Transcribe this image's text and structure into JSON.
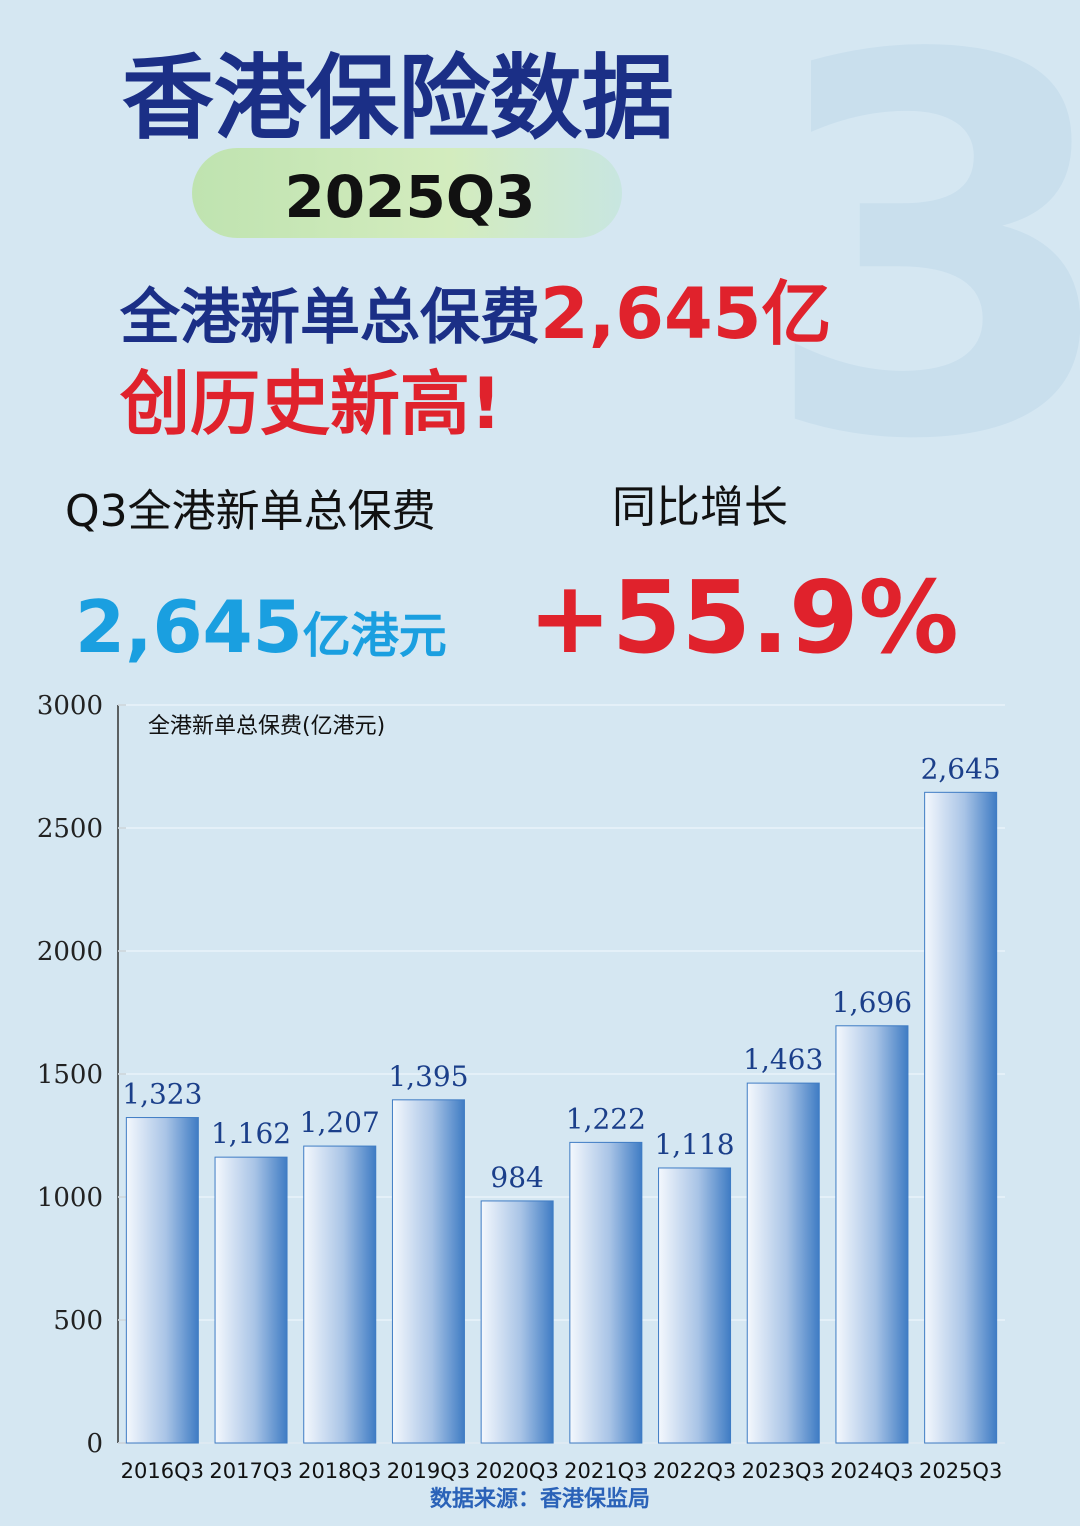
{
  "header": {
    "title": "香港保险数据",
    "period": "2025Q3",
    "headline": "全港新单总保费",
    "headline_value": "2,645亿",
    "headline_note": "创历史新高!"
  },
  "stats": {
    "premium_label": "Q3全港新单总保费",
    "premium_value": "2,645",
    "premium_unit": "亿港元",
    "growth_label": "同比增长",
    "growth_value": "+55.9%"
  },
  "chart_data": {
    "type": "bar",
    "y_label": "全港新单总保费(亿港元)",
    "categories": [
      "2016Q3",
      "2017Q3",
      "2018Q3",
      "2019Q3",
      "2020Q3",
      "2021Q3",
      "2022Q3",
      "2023Q3",
      "2024Q3",
      "2025Q3"
    ],
    "values": [
      1323,
      1162,
      1207,
      1395,
      984,
      1222,
      1118,
      1463,
      1696,
      2645
    ],
    "value_labels": [
      "1,323",
      "1,162",
      "1,207",
      "1,395",
      "984",
      "1,222",
      "1,118",
      "1,463",
      "1,696",
      "2,645"
    ],
    "color": "#3f7cc4",
    "ylim": [
      0,
      3000
    ],
    "yticks": [
      0,
      500,
      1000,
      1500,
      2000,
      2500,
      3000
    ],
    "grid": true,
    "source": "数据来源：香港保监局"
  }
}
